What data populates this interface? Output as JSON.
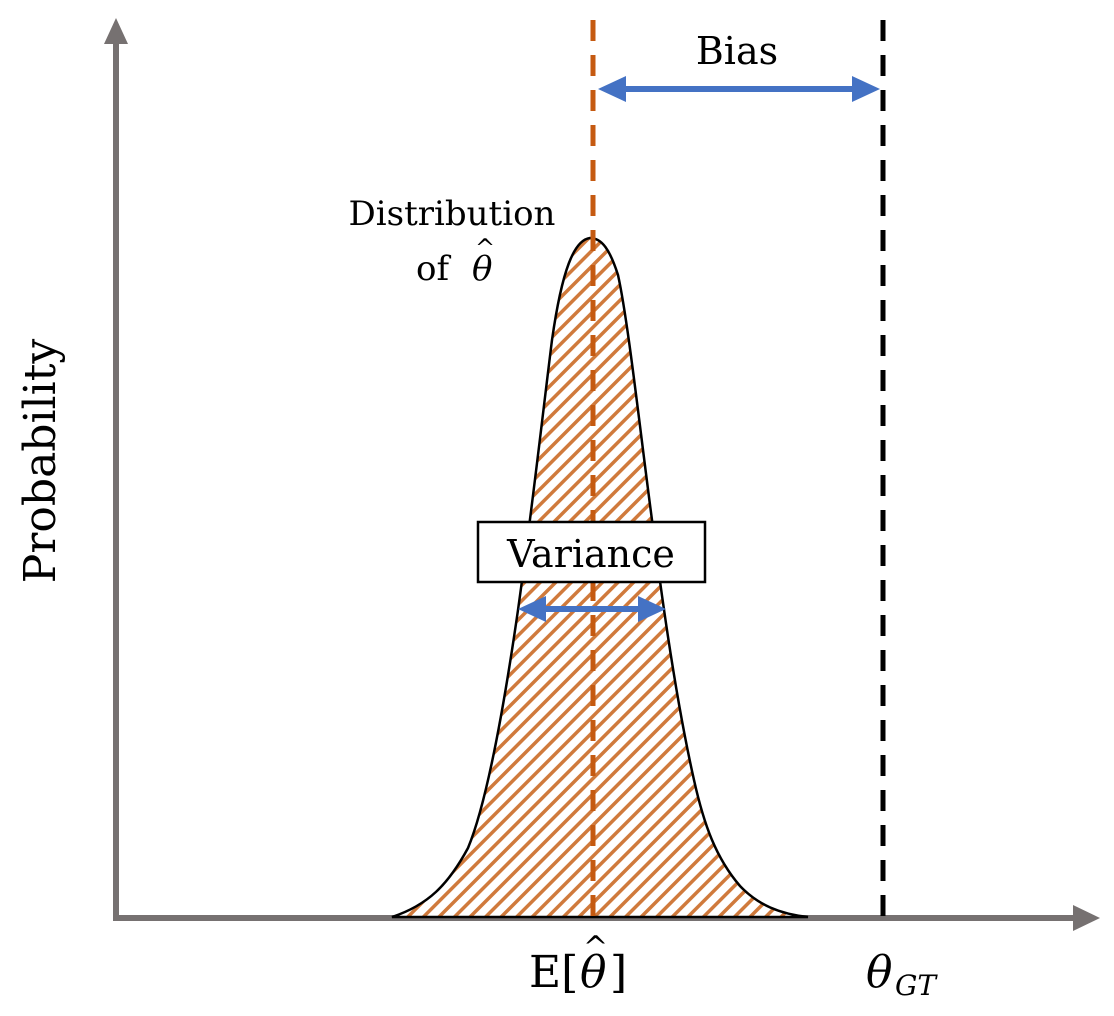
{
  "diagram": {
    "y_axis_label": "Probability",
    "bias_label": "Bias",
    "variance_label": "Variance",
    "distribution_label_line1": "Distribution",
    "distribution_label_of": "of",
    "theta_symbol": "θ",
    "hat_symbol": "^",
    "expectation_prefix": "E[",
    "expectation_suffix": "]",
    "ground_truth_subscript": "GT",
    "colors": {
      "axis": "#767171",
      "distribution_fill": "#D07A3C",
      "expected_line": "#C55A11",
      "ground_truth_line": "#000000",
      "arrow": "#4472C4",
      "outline": "#000000"
    }
  }
}
